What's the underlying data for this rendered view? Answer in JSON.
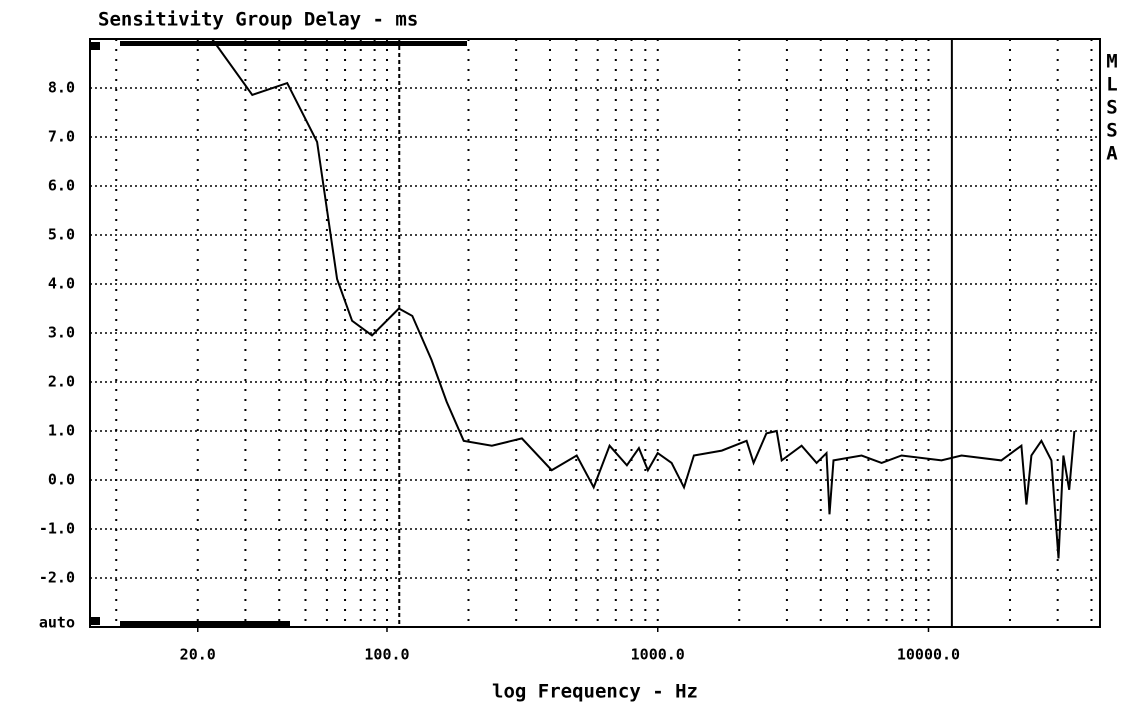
{
  "chart_data": {
    "type": "line",
    "title": "Sensitivity Group Delay - ms",
    "x_label": "log Frequency - Hz",
    "y_bottom_label": "auto",
    "side_label": [
      "M",
      "L",
      "S",
      "S",
      "A"
    ],
    "x_scale": "log",
    "xlim": [
      8,
      43000
    ],
    "ylim": [
      -3,
      9
    ],
    "xticks": [
      {
        "value": 20,
        "label": "20.0"
      },
      {
        "value": 100,
        "label": "100.0"
      },
      {
        "value": 1000,
        "label": "1000.0"
      },
      {
        "value": 10000,
        "label": "10000.0"
      }
    ],
    "yticks": [
      {
        "value": 8,
        "label": "8.0"
      },
      {
        "value": 7,
        "label": "7.0"
      },
      {
        "value": 6,
        "label": "6.0"
      },
      {
        "value": 5,
        "label": "5.0"
      },
      {
        "value": 4,
        "label": "4.0"
      },
      {
        "value": 3,
        "label": "3.0"
      },
      {
        "value": 2,
        "label": "2.0"
      },
      {
        "value": 1,
        "label": "1.0"
      },
      {
        "value": 0,
        "label": "0.0"
      },
      {
        "value": -1,
        "label": "-1.0"
      },
      {
        "value": -2,
        "label": "-2.0"
      }
    ],
    "xgrid": [
      10,
      20,
      30,
      40,
      50,
      60,
      70,
      80,
      90,
      100,
      200,
      300,
      400,
      500,
      600,
      700,
      800,
      900,
      1000,
      2000,
      3000,
      4000,
      5000,
      6000,
      7000,
      8000,
      9000,
      10000,
      20000,
      30000,
      40000
    ],
    "cursors": [
      111,
      12200
    ],
    "grid": true,
    "color": "#000000",
    "series": [
      {
        "name": "Sensitivity Group Delay",
        "color": "#000000",
        "x": [
          22.6,
          31.8,
          42.8,
          55.2,
          60.1,
          65.4,
          74.3,
          88,
          110.7,
          124,
          146,
          166,
          192,
          244,
          315,
          406,
          502,
          580,
          664,
          769,
          852,
          920,
          1000,
          1125,
          1250,
          1360,
          1725,
          2130,
          2260,
          2520,
          2750,
          2870,
          3400,
          3860,
          4200,
          4310,
          4460,
          5660,
          6710,
          7950,
          11170,
          13240,
          18580,
          22030,
          23000,
          23990,
          26120,
          28450,
          30200,
          31500,
          33100,
          34600
        ],
        "values": [
          9.0,
          7.86,
          8.1,
          6.9,
          5.5,
          4.1,
          3.25,
          2.95,
          3.5,
          3.35,
          2.45,
          1.6,
          0.8,
          0.7,
          0.85,
          0.2,
          0.5,
          -0.15,
          0.7,
          0.3,
          0.65,
          0.2,
          0.55,
          0.35,
          -0.15,
          0.5,
          0.6,
          0.8,
          0.35,
          0.95,
          1.0,
          0.4,
          0.7,
          0.35,
          0.55,
          -0.7,
          0.4,
          0.5,
          0.35,
          0.5,
          0.4,
          0.5,
          0.4,
          0.7,
          -0.5,
          0.5,
          0.8,
          0.4,
          -1.6,
          0.5,
          -0.2,
          1.0
        ]
      }
    ]
  }
}
